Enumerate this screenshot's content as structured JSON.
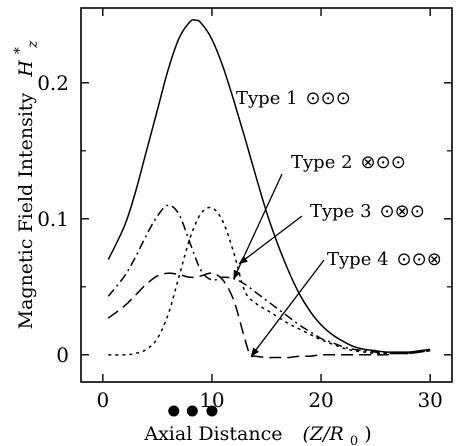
{
  "chart_data": {
    "type": "line",
    "title": "",
    "xlabel": "Axial Distance",
    "xlabel_unit": "(Z/R",
    "xlabel_unit_sub": "0",
    "xlabel_unit_close": ")",
    "ylabel": "Magnetic Field Intensity",
    "ylabel_symbol": "H",
    "ylabel_symbol_sup": "*",
    "ylabel_symbol_sub": "z",
    "xlim": [
      -2,
      32
    ],
    "ylim": [
      -0.02,
      0.255
    ],
    "xticks": [
      0,
      10,
      20,
      30
    ],
    "xtick_labels": [
      "0",
      "10",
      "20",
      "30"
    ],
    "yticks": [
      0,
      0.1,
      0.2
    ],
    "ytick_labels": [
      "0",
      "0.1",
      "0.2"
    ],
    "coil_positions": [
      6.5,
      8.2,
      10
    ],
    "series": [
      {
        "name": "Type 1 ⊙⊙⊙",
        "label": "Type 1",
        "symbols": "⊙⊙⊙",
        "dash": "",
        "x": [
          0.5,
          2,
          3,
          4,
          5,
          6,
          7,
          8,
          8.5,
          9,
          10,
          11,
          12,
          13,
          14,
          15,
          16,
          17,
          18,
          19,
          20,
          21,
          22,
          23,
          24,
          25,
          26,
          27,
          28,
          29,
          30
        ],
        "y": [
          0.07,
          0.095,
          0.12,
          0.15,
          0.18,
          0.21,
          0.233,
          0.245,
          0.246,
          0.244,
          0.232,
          0.212,
          0.187,
          0.16,
          0.132,
          0.105,
          0.082,
          0.062,
          0.045,
          0.032,
          0.022,
          0.015,
          0.01,
          0.006,
          0.004,
          0.003,
          0.002,
          0.002,
          0.002,
          0.003,
          0.004
        ]
      },
      {
        "name": "Type 2 ⊗⊙⊙",
        "label": "Type 2",
        "symbols": "⊗⊙⊙",
        "dash": "9,4,2,4",
        "x": [
          0.5,
          2,
          3,
          4,
          5,
          6,
          7,
          8,
          9,
          10,
          11,
          12,
          13,
          14,
          15,
          16,
          17,
          18,
          19,
          20,
          21,
          22,
          23,
          24,
          25,
          26,
          27,
          28,
          29,
          30
        ],
        "y": [
          0.043,
          0.058,
          0.072,
          0.088,
          0.102,
          0.11,
          0.103,
          0.082,
          0.062,
          0.055,
          0.057,
          0.056,
          0.052,
          0.046,
          0.04,
          0.034,
          0.028,
          0.022,
          0.017,
          0.012,
          0.009,
          0.006,
          0.004,
          0.003,
          0.002,
          0.001,
          0.001,
          0.001,
          0.002,
          0.003
        ]
      },
      {
        "name": "Type 3 ⊙⊗⊙",
        "label": "Type 3",
        "symbols": "⊙⊗⊙",
        "dash": "3,4",
        "x": [
          0.5,
          2,
          3,
          4,
          5,
          6,
          7,
          8,
          9,
          10,
          11,
          12,
          13,
          14,
          15,
          16,
          17,
          18,
          19,
          20,
          21,
          22,
          23,
          24,
          25,
          26,
          27,
          28,
          29,
          30
        ],
        "y": [
          0.0,
          0.0,
          0.001,
          0.004,
          0.012,
          0.03,
          0.058,
          0.086,
          0.104,
          0.108,
          0.098,
          0.075,
          0.047,
          0.038,
          0.033,
          0.028,
          0.023,
          0.019,
          0.015,
          0.011,
          0.008,
          0.005,
          0.003,
          0.002,
          0.001,
          0.001,
          0.001,
          0.001,
          0.002,
          0.003
        ]
      },
      {
        "name": "Type 4 ⊙⊙⊗",
        "label": "Type 4",
        "symbols": "⊙⊙⊗",
        "dash": "12,6",
        "x": [
          0.5,
          2,
          3,
          4,
          5,
          6,
          7,
          8,
          9,
          10,
          11,
          12,
          13,
          13.5,
          14,
          15,
          16,
          17,
          18,
          19,
          20,
          21,
          22,
          23,
          24,
          25,
          26,
          27,
          28,
          29,
          30
        ],
        "y": [
          0.027,
          0.036,
          0.044,
          0.052,
          0.058,
          0.06,
          0.059,
          0.057,
          0.058,
          0.06,
          0.055,
          0.04,
          0.012,
          0.0,
          -0.001,
          -0.002,
          -0.002,
          -0.002,
          -0.001,
          -0.001,
          0.0,
          0.0,
          0.0,
          0.0,
          0.0,
          0.0,
          0.0,
          0.001,
          0.001,
          0.002,
          0.003
        ]
      }
    ],
    "annotations": [
      {
        "series": 0,
        "text": "Type 1",
        "symbols": "⊙⊙⊙",
        "arrow": false
      },
      {
        "series": 1,
        "text": "Type 2",
        "symbols": "⊗⊙⊙",
        "arrow": true,
        "arrow_to": [
          12,
          0.056
        ]
      },
      {
        "series": 2,
        "text": "Type 3",
        "symbols": "⊙⊗⊙",
        "arrow": true,
        "arrow_to": [
          12.5,
          0.067
        ]
      },
      {
        "series": 3,
        "text": "Type 4",
        "symbols": "⊙⊙⊗",
        "arrow": true,
        "arrow_to": [
          13.6,
          -0.001
        ]
      }
    ],
    "grid": false,
    "legend": "inline labels with arrows"
  }
}
